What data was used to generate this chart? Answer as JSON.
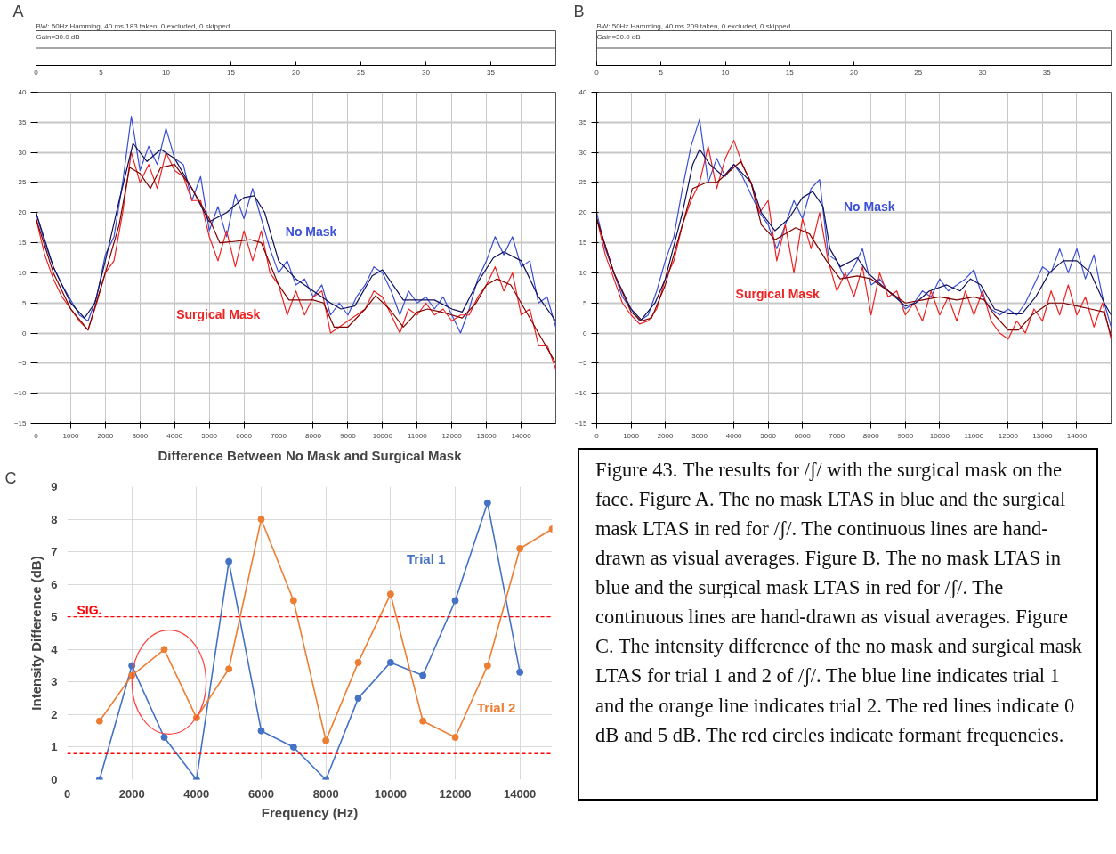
{
  "chart_data": [
    {
      "type": "line",
      "annotations": [
        "A",
        "BW: 50Hz Hamming, 40 ms 183 taken, 0 excluded, 0 skipped",
        "Gain=30.0 dB"
      ],
      "x2lim": [
        0,
        40
      ],
      "x2ticks": [
        0,
        5,
        10,
        15,
        20,
        25,
        30,
        35
      ],
      "xlim": [
        0,
        15000
      ],
      "xticks": [
        0,
        1000,
        2000,
        3000,
        4000,
        5000,
        6000,
        7000,
        8000,
        9000,
        10000,
        11000,
        12000,
        13000,
        14000
      ],
      "ylim": [
        -15,
        40
      ],
      "yticks": [
        -15,
        -10,
        -5,
        0,
        5,
        10,
        15,
        20,
        25,
        30,
        35,
        40
      ],
      "grid": true,
      "x": [
        0,
        250,
        500,
        750,
        1000,
        1250,
        1500,
        1750,
        2000,
        2250,
        2500,
        2750,
        3000,
        3250,
        3500,
        3750,
        4000,
        4250,
        4500,
        4750,
        5000,
        5250,
        5500,
        5750,
        6000,
        6250,
        6500,
        6750,
        7000,
        7250,
        7500,
        7750,
        8000,
        8250,
        8500,
        8750,
        9000,
        9250,
        9500,
        9750,
        10000,
        10250,
        10500,
        10750,
        11000,
        11250,
        11500,
        11750,
        12000,
        12250,
        12500,
        12750,
        13000,
        13250,
        13500,
        13750,
        14000,
        14250,
        14500,
        14750,
        15000
      ],
      "series": [
        {
          "name": "No Mask",
          "color": "#3a4fd6",
          "values": [
            20,
            15,
            11,
            8,
            5.5,
            3,
            2,
            6,
            13,
            16,
            25,
            36,
            27,
            31,
            28,
            34,
            29,
            28,
            22,
            26,
            17,
            21,
            16,
            23,
            19,
            24,
            19,
            14,
            10,
            12,
            8,
            9,
            6,
            8,
            3,
            5,
            3,
            6,
            8,
            11,
            10,
            7,
            3,
            7,
            5,
            6,
            4,
            6,
            3,
            0,
            4,
            9,
            12,
            16,
            13,
            16,
            11,
            12,
            5,
            6,
            1
          ]
        },
        {
          "name": "Surgical Mask",
          "color": "#ee2222",
          "values": [
            19,
            13,
            9,
            6,
            4,
            2,
            0.5,
            5,
            10,
            12,
            20,
            30,
            25,
            28,
            24,
            30,
            27,
            26,
            22,
            22,
            16,
            12,
            17,
            11,
            17,
            12,
            17,
            10,
            8,
            3,
            7,
            3,
            6,
            7,
            0,
            1,
            2,
            3,
            4,
            7,
            6,
            3,
            0,
            4,
            3,
            5,
            3,
            4,
            2,
            3,
            3,
            6,
            8,
            11,
            7,
            10,
            3,
            4,
            -2,
            -2,
            -6
          ]
        },
        {
          "color": "#10105a",
          "x": [
            0,
            500,
            1000,
            1400,
            1700,
            2000,
            2400,
            2800,
            3200,
            3600,
            4000,
            4500,
            5000,
            5500,
            6000,
            6300,
            6600,
            7000,
            7500,
            8000,
            8500,
            8800,
            9200,
            9700,
            10000,
            10300,
            10600,
            11000,
            11500,
            12000,
            12300,
            12700,
            13200,
            13500,
            14000,
            14500,
            15000
          ],
          "values": [
            20,
            11,
            5,
            2.5,
            5,
            12,
            22,
            31.5,
            28.5,
            30.5,
            29,
            24,
            18.5,
            20,
            22.5,
            22.8,
            20,
            12,
            9,
            7,
            5,
            4,
            4.5,
            9.5,
            10.5,
            8,
            5.5,
            5.5,
            5.5,
            4,
            3.5,
            8,
            12.5,
            13.5,
            12,
            6,
            2
          ]
        },
        {
          "color": "#800000",
          "x": [
            0,
            500,
            1000,
            1500,
            2000,
            2400,
            2700,
            3000,
            3300,
            3600,
            4000,
            4500,
            5000,
            5300,
            5700,
            6200,
            6500,
            7000,
            7300,
            8000,
            8300,
            8600,
            9000,
            9500,
            9800,
            10200,
            10600,
            11000,
            11300,
            11700,
            12000,
            12300,
            12700,
            13000,
            13300,
            13700,
            14200,
            14600,
            15000
          ],
          "values": [
            19,
            10,
            4,
            0.5,
            10,
            18,
            27.5,
            26.5,
            24,
            27.5,
            28,
            24,
            19,
            15,
            15.2,
            15.5,
            15,
            8,
            5.5,
            5.5,
            5,
            1,
            1,
            4,
            6.2,
            4,
            1,
            3.5,
            4,
            3.5,
            3,
            2.5,
            5,
            8,
            9,
            8,
            3,
            -1,
            -5
          ]
        }
      ]
    },
    {
      "type": "line",
      "annotations": [
        "B",
        "BW: 50Hz Hamming, 40 ms 209 taken, 0 excluded, 0 skipped",
        "Gain=30.0 dB"
      ],
      "x2lim": [
        0,
        40
      ],
      "x2ticks": [
        0,
        5,
        10,
        15,
        20,
        25,
        30,
        35
      ],
      "xlim": [
        0,
        15000
      ],
      "xticks": [
        0,
        1000,
        2000,
        3000,
        4000,
        5000,
        6000,
        7000,
        8000,
        9000,
        10000,
        11000,
        12000,
        13000,
        14000
      ],
      "ylim": [
        -15,
        40
      ],
      "yticks": [
        -15,
        -10,
        -5,
        0,
        5,
        10,
        15,
        20,
        25,
        30,
        35,
        40
      ],
      "grid": true,
      "x": [
        0,
        250,
        500,
        750,
        1000,
        1250,
        1500,
        1750,
        2000,
        2250,
        2500,
        2750,
        3000,
        3250,
        3500,
        3750,
        4000,
        4250,
        4500,
        4750,
        5000,
        5250,
        5500,
        5750,
        6000,
        6250,
        6500,
        6750,
        7000,
        7250,
        7500,
        7750,
        8000,
        8250,
        8500,
        8750,
        9000,
        9250,
        9500,
        9750,
        10000,
        10250,
        10500,
        10750,
        11000,
        11250,
        11500,
        11750,
        12000,
        12250,
        12500,
        12750,
        13000,
        13250,
        13500,
        13750,
        14000,
        14250,
        14500,
        14750,
        15000
      ],
      "series": [
        {
          "name": "No Mask",
          "color": "#3a4fd6",
          "values": [
            20,
            14,
            10,
            6,
            4,
            2,
            3,
            7,
            12,
            16,
            24,
            31,
            35.5,
            25,
            29,
            26,
            28,
            26,
            23,
            20,
            18,
            14,
            18,
            22,
            19,
            24,
            25.5,
            13,
            12,
            9,
            11,
            14,
            8,
            9,
            7,
            6,
            4,
            5,
            7,
            6,
            9,
            7,
            8,
            9,
            10.5,
            6,
            4,
            3,
            4,
            3,
            5,
            8,
            11,
            10,
            14,
            10,
            14,
            9,
            13,
            6,
            1
          ]
        },
        {
          "name": "Surgical Mask",
          "color": "#ee2222",
          "values": [
            19,
            13,
            9,
            5,
            3,
            1.5,
            2,
            4,
            9,
            12,
            18,
            22,
            25,
            31,
            24,
            29,
            32,
            28,
            25,
            20,
            22,
            12,
            18,
            10,
            19,
            14,
            20,
            12,
            7,
            10,
            6,
            11,
            3,
            10,
            6,
            7,
            3,
            5,
            2,
            7,
            3,
            6,
            2,
            7,
            3,
            7,
            2,
            0,
            -1,
            2,
            0,
            4,
            2,
            7,
            3,
            8,
            3,
            6,
            1,
            5,
            -1
          ]
        },
        {
          "color": "#10105a",
          "x": [
            0,
            500,
            1000,
            1300,
            1700,
            2000,
            2500,
            2800,
            3000,
            3300,
            3700,
            4000,
            4500,
            4800,
            5200,
            5600,
            6000,
            6300,
            6600,
            6800,
            7100,
            7600,
            7900,
            8300,
            8700,
            9000,
            9300,
            9700,
            10200,
            10600,
            10900,
            11200,
            11600,
            12000,
            12400,
            12800,
            13200,
            13600,
            14000,
            14400,
            14800,
            15000
          ],
          "values": [
            19,
            10,
            4,
            2.2,
            5,
            9,
            20,
            28,
            30.5,
            28,
            26,
            28,
            25,
            20,
            17,
            19,
            22.5,
            23.5,
            21,
            14,
            11,
            12.5,
            10,
            8,
            6,
            4.5,
            5,
            7,
            8,
            7,
            9,
            8,
            4,
            3.2,
            3.2,
            6,
            10,
            12,
            12,
            10,
            5,
            3
          ]
        },
        {
          "color": "#800000",
          "x": [
            0,
            500,
            1000,
            1300,
            1600,
            2000,
            2500,
            2800,
            3200,
            3500,
            3800,
            4200,
            4500,
            4800,
            5200,
            5500,
            5800,
            6200,
            6700,
            7100,
            7600,
            8000,
            8500,
            9000,
            9500,
            10000,
            10500,
            11000,
            11300,
            11600,
            12000,
            12300,
            12700,
            13200,
            13600,
            14000,
            14400,
            14800,
            15000
          ],
          "values": [
            19,
            10,
            3.5,
            2,
            2.5,
            8,
            18,
            24,
            25,
            25,
            26.5,
            28.5,
            25,
            18,
            15.5,
            16.5,
            17.5,
            16.5,
            12,
            9,
            9.5,
            9,
            7,
            5,
            5.5,
            6,
            5.5,
            6,
            5.5,
            3,
            0.5,
            0.5,
            3,
            5,
            5,
            4.5,
            4,
            3.5,
            -0.5
          ]
        }
      ]
    },
    {
      "type": "line",
      "title": "Difference Between No Mask and Surgical Mask",
      "xlabel": "Frequency (Hz)",
      "ylabel": "Intensity Difference (dB)",
      "annotations": [
        "C"
      ],
      "xlim": [
        0,
        15000
      ],
      "xticks": [
        0,
        2000,
        4000,
        6000,
        8000,
        10000,
        12000,
        14000
      ],
      "ylim": [
        0,
        9
      ],
      "yticks": [
        0,
        1,
        2,
        3,
        4,
        5,
        6,
        7,
        8,
        9
      ],
      "grid": true,
      "marker": "circle",
      "ref_lines": [
        {
          "axis": "y",
          "value": 5,
          "label": "SIG.",
          "color": "#ff0000",
          "line_style": "dashed"
        },
        {
          "axis": "y",
          "value": 0.8,
          "label": null,
          "color": "#ff0000",
          "line_style": "dashed"
        }
      ],
      "series": [
        {
          "name": "Trial 1",
          "color": "#4472c4",
          "x": [
            1000,
            2000,
            3000,
            4000,
            5000,
            6000,
            7000,
            8000,
            9000,
            10000,
            11000,
            12000,
            13000,
            14000
          ],
          "values": [
            0,
            3.5,
            1.3,
            0,
            6.7,
            1.5,
            1.0,
            0,
            2.5,
            3.6,
            3.2,
            5.5,
            8.5,
            3.3
          ]
        },
        {
          "name": "Trial 2",
          "color": "#ed7d31",
          "x": [
            1000,
            2000,
            3000,
            4000,
            5000,
            6000,
            7000,
            8000,
            9000,
            10000,
            11000,
            12000,
            13000,
            14000,
            15000
          ],
          "values": [
            1.8,
            3.2,
            4.0,
            1.9,
            3.4,
            8.0,
            5.5,
            1.2,
            3.6,
            5.7,
            1.8,
            1.3,
            3.5,
            7.1,
            7.7
          ]
        }
      ]
    },
    {
      "type": "other",
      "annotations": [
        "Figure 43. The results for /ʃ/ with the surgical mask on the face. Figure A. The no mask LTAS in blue and the surgical mask LTAS in red for /ʃ/. The continuous lines are hand-drawn as visual averages. Figure B. The no mask LTAS in blue and the surgical mask LTAS in red for /ʃ/. The continuous lines are hand-drawn as visual averages. Figure C. The intensity difference of the no mask and surgical mask LTAS for trial 1 and 2 of /ʃ/. The blue line indicates trial 1 and the orange line indicates trial 2. The red lines indicate 0 dB and 5 dB. The red circles indicate formant frequencies."
      ]
    }
  ]
}
